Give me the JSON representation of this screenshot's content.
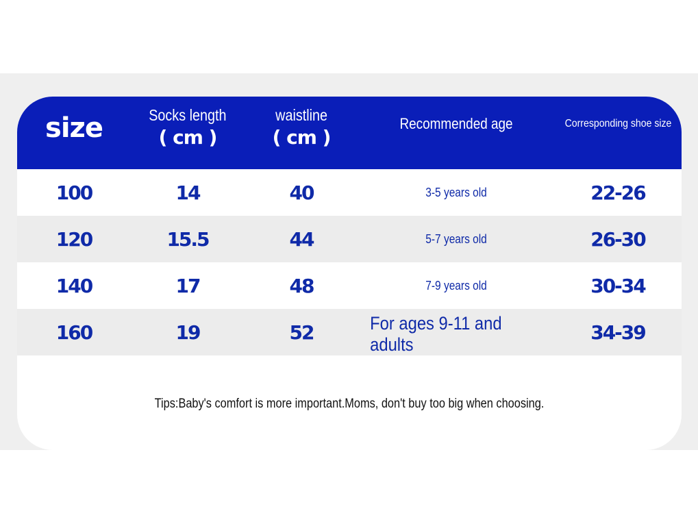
{
  "header": {
    "size": "size",
    "socks_length": "Socks length",
    "socks_unit": "( cm )",
    "waistline": "waistline",
    "waist_unit": "( cm )",
    "recommended_age": "Recommended age",
    "shoe_size": "Corresponding shoe size"
  },
  "rows": [
    {
      "size": "100",
      "socks": "14",
      "waist": "40",
      "age": "3-5 years old",
      "shoe": "22-26"
    },
    {
      "size": "120",
      "socks": "15.5",
      "waist": "44",
      "age": "5-7 years old",
      "shoe": "26-30"
    },
    {
      "size": "140",
      "socks": "17",
      "waist": "48",
      "age": "7-9 years old",
      "shoe": "30-34"
    },
    {
      "size": "160",
      "socks": "19",
      "waist": "52",
      "age": "For ages 9-11 and adults",
      "shoe": "34-39"
    }
  ],
  "tip": "Tips:Baby's comfort is more important.Moms, don't buy too big when choosing.",
  "colors": {
    "header_bg": "#0a1eb8",
    "value_text": "#0f2aa8",
    "stripe": "#ececec",
    "band": "#efefef"
  }
}
